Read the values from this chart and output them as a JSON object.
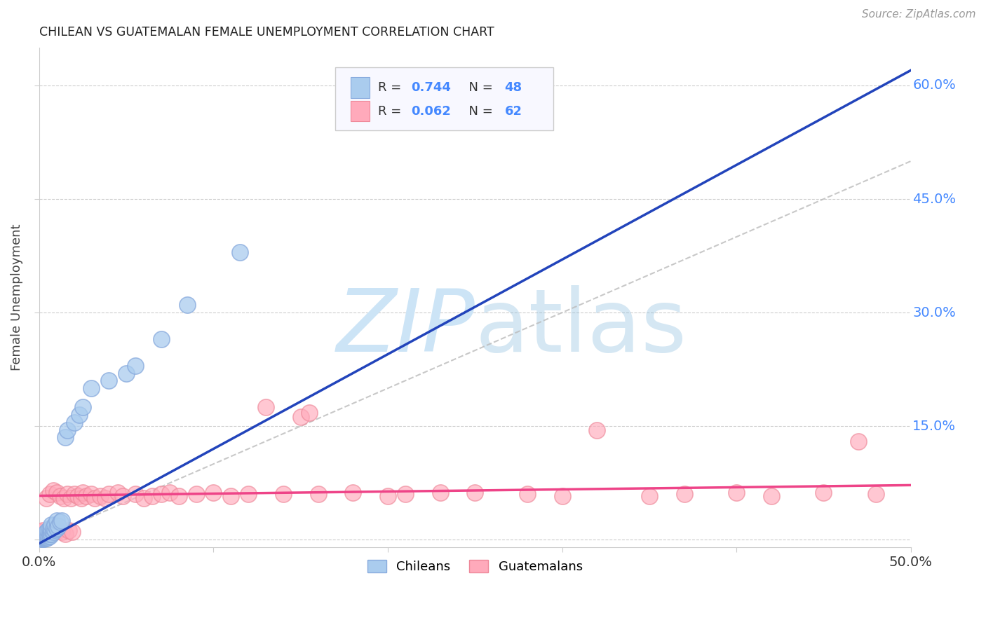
{
  "title": "CHILEAN VS GUATEMALAN FEMALE UNEMPLOYMENT CORRELATION CHART",
  "source": "Source: ZipAtlas.com",
  "ylabel": "Female Unemployment",
  "xlim": [
    0.0,
    0.5
  ],
  "ylim": [
    -0.01,
    0.65
  ],
  "background_color": "#ffffff",
  "grid_color": "#cccccc",
  "blue_color": "#aaccee",
  "blue_edge_color": "#88aadd",
  "pink_color": "#ffaabb",
  "pink_edge_color": "#ee8899",
  "blue_line_color": "#2244bb",
  "pink_line_color": "#ee4488",
  "ref_line_color": "#bbbbbb",
  "tick_label_color": "#4488ff",
  "title_color": "#222222",
  "ylabel_color": "#444444",
  "watermark_color": "#cce4f6",
  "legend_R1": "0.744",
  "legend_N1": "48",
  "legend_R2": "0.062",
  "legend_N2": "62",
  "blue_line_x0": 0.0,
  "blue_line_y0": -0.005,
  "blue_line_x1": 0.5,
  "blue_line_y1": 0.62,
  "pink_line_x0": 0.0,
  "pink_line_y0": 0.058,
  "pink_line_x1": 0.5,
  "pink_line_y1": 0.072,
  "ch_x": [
    0.001,
    0.001,
    0.002,
    0.002,
    0.002,
    0.002,
    0.003,
    0.003,
    0.003,
    0.003,
    0.003,
    0.004,
    0.004,
    0.004,
    0.004,
    0.005,
    0.005,
    0.005,
    0.005,
    0.006,
    0.006,
    0.006,
    0.006,
    0.007,
    0.007,
    0.007,
    0.007,
    0.008,
    0.008,
    0.009,
    0.009,
    0.01,
    0.01,
    0.011,
    0.012,
    0.013,
    0.015,
    0.016,
    0.02,
    0.023,
    0.025,
    0.03,
    0.04,
    0.05,
    0.055,
    0.07,
    0.085,
    0.115
  ],
  "ch_y": [
    0.001,
    0.002,
    0.001,
    0.003,
    0.004,
    0.005,
    0.001,
    0.002,
    0.003,
    0.005,
    0.007,
    0.002,
    0.003,
    0.006,
    0.01,
    0.003,
    0.005,
    0.008,
    0.012,
    0.005,
    0.008,
    0.011,
    0.015,
    0.008,
    0.012,
    0.015,
    0.02,
    0.01,
    0.015,
    0.013,
    0.02,
    0.015,
    0.025,
    0.018,
    0.023,
    0.025,
    0.135,
    0.145,
    0.155,
    0.165,
    0.175,
    0.2,
    0.21,
    0.22,
    0.23,
    0.265,
    0.31,
    0.38
  ],
  "gt_x": [
    0.001,
    0.002,
    0.003,
    0.004,
    0.005,
    0.006,
    0.007,
    0.008,
    0.009,
    0.01,
    0.01,
    0.011,
    0.012,
    0.013,
    0.014,
    0.015,
    0.016,
    0.017,
    0.018,
    0.019,
    0.02,
    0.022,
    0.024,
    0.025,
    0.027,
    0.03,
    0.032,
    0.035,
    0.038,
    0.04,
    0.045,
    0.048,
    0.055,
    0.06,
    0.065,
    0.07,
    0.075,
    0.08,
    0.09,
    0.1,
    0.11,
    0.12,
    0.13,
    0.14,
    0.15,
    0.155,
    0.16,
    0.18,
    0.2,
    0.21,
    0.23,
    0.25,
    0.28,
    0.3,
    0.32,
    0.35,
    0.37,
    0.4,
    0.42,
    0.45,
    0.47,
    0.48
  ],
  "gt_y": [
    0.01,
    0.012,
    0.008,
    0.055,
    0.01,
    0.06,
    0.008,
    0.065,
    0.01,
    0.015,
    0.062,
    0.012,
    0.058,
    0.01,
    0.055,
    0.008,
    0.06,
    0.012,
    0.055,
    0.01,
    0.06,
    0.058,
    0.055,
    0.062,
    0.058,
    0.06,
    0.055,
    0.058,
    0.055,
    0.06,
    0.062,
    0.058,
    0.06,
    0.055,
    0.058,
    0.06,
    0.062,
    0.058,
    0.06,
    0.062,
    0.058,
    0.06,
    0.175,
    0.06,
    0.162,
    0.168,
    0.06,
    0.062,
    0.058,
    0.06,
    0.062,
    0.062,
    0.06,
    0.058,
    0.145,
    0.058,
    0.06,
    0.062,
    0.058,
    0.062,
    0.13,
    0.06
  ]
}
